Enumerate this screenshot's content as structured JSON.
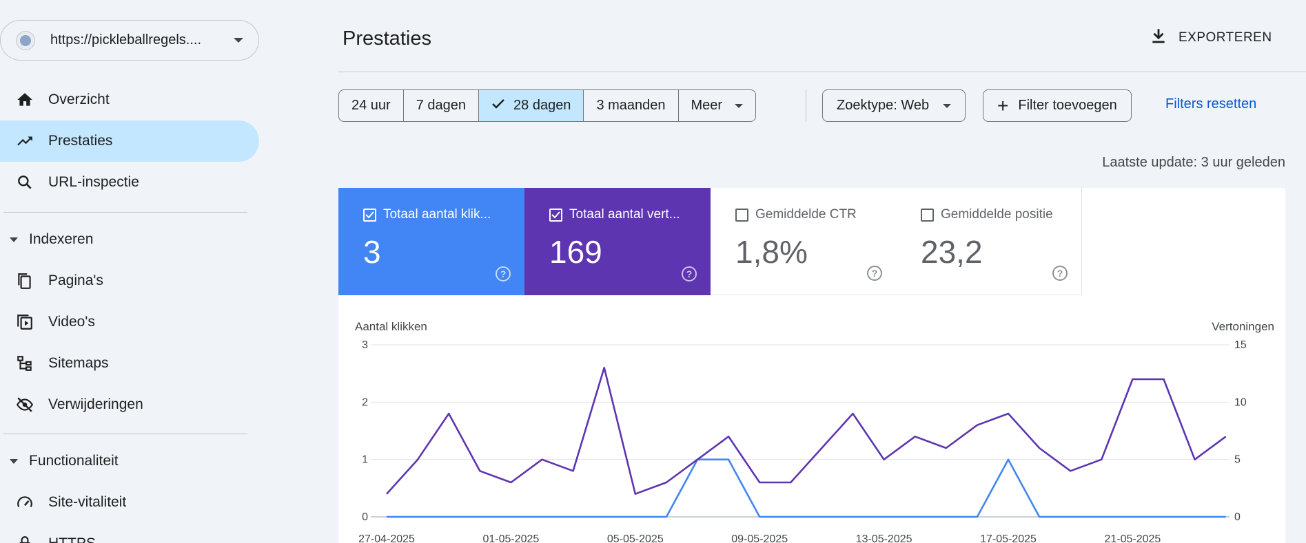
{
  "sidebar": {
    "property_url": "https://pickleballregels....",
    "items": [
      {
        "label": "Overzicht",
        "icon": "home-icon"
      },
      {
        "label": "Prestaties",
        "icon": "trending-up-icon",
        "active": true
      },
      {
        "label": "URL-inspectie",
        "icon": "search-icon"
      }
    ],
    "sections": [
      {
        "label": "Indexeren",
        "items": [
          {
            "label": "Pagina's",
            "icon": "pages-icon"
          },
          {
            "label": "Video's",
            "icon": "video-icon"
          },
          {
            "label": "Sitemaps",
            "icon": "sitemap-icon"
          },
          {
            "label": "Verwijderingen",
            "icon": "eye-off-icon"
          }
        ]
      },
      {
        "label": "Functionaliteit",
        "items": [
          {
            "label": "Site-vitaliteit",
            "icon": "speedometer-icon"
          },
          {
            "label": "HTTPS",
            "icon": "lock-icon"
          }
        ]
      }
    ]
  },
  "header": {
    "title": "Prestaties",
    "export_label": "EXPORTEREN"
  },
  "filters": {
    "date_options": [
      "24 uur",
      "7 dagen",
      "28 dagen",
      "3 maanden",
      "Meer"
    ],
    "selected_date": "28 dagen",
    "search_type": "Zoektype: Web",
    "add_filter": "Filter toevoegen",
    "reset": "Filters resetten",
    "last_update": "Laatste update: 3 uur geleden"
  },
  "metrics": [
    {
      "label": "Totaal aantal klik...",
      "value": "3",
      "checked": true,
      "color": "#4285f4"
    },
    {
      "label": "Totaal aantal vert...",
      "value": "169",
      "checked": true,
      "color": "#5e35b1"
    },
    {
      "label": "Gemiddelde CTR",
      "value": "1,8%",
      "checked": false
    },
    {
      "label": "Gemiddelde positie",
      "value": "23,2",
      "checked": false
    }
  ],
  "chart_data": {
    "type": "line",
    "ylabel_left": "Aantal klikken",
    "ylabel_right": "Vertoningen",
    "yticks_left": [
      "0",
      "1",
      "2",
      "3"
    ],
    "yticks_right": [
      "0",
      "5",
      "10",
      "15"
    ],
    "ylim_left": [
      0,
      3
    ],
    "ylim_right": [
      0,
      15
    ],
    "x_tick_labels": [
      "27-04-2025",
      "01-05-2025",
      "05-05-2025",
      "09-05-2025",
      "13-05-2025",
      "17-05-2025",
      "21-05-2025"
    ],
    "x": [
      "27-04-2025",
      "28-04-2025",
      "29-04-2025",
      "30-04-2025",
      "01-05-2025",
      "02-05-2025",
      "03-05-2025",
      "04-05-2025",
      "05-05-2025",
      "06-05-2025",
      "07-05-2025",
      "08-05-2025",
      "09-05-2025",
      "10-05-2025",
      "11-05-2025",
      "12-05-2025",
      "13-05-2025",
      "14-05-2025",
      "15-05-2025",
      "16-05-2025",
      "17-05-2025",
      "18-05-2025",
      "19-05-2025",
      "20-05-2025",
      "21-05-2025",
      "22-05-2025",
      "23-05-2025",
      "24-05-2025"
    ],
    "series": [
      {
        "axis": "left",
        "color": "#4285f4",
        "values": [
          0,
          0,
          0,
          0,
          0,
          0,
          0,
          0,
          0,
          0,
          1,
          1,
          0,
          0,
          0,
          0,
          0,
          0,
          0,
          0,
          1,
          0,
          0,
          0,
          0,
          0,
          0,
          0
        ]
      },
      {
        "axis": "right",
        "color": "#5e35b1",
        "values": [
          2,
          5,
          9,
          4,
          3,
          5,
          4,
          13,
          2,
          3,
          5,
          7,
          3,
          3,
          6,
          9,
          5,
          7,
          6,
          8,
          9,
          6,
          4,
          5,
          12,
          12,
          5,
          7
        ]
      }
    ],
    "grid": true
  }
}
